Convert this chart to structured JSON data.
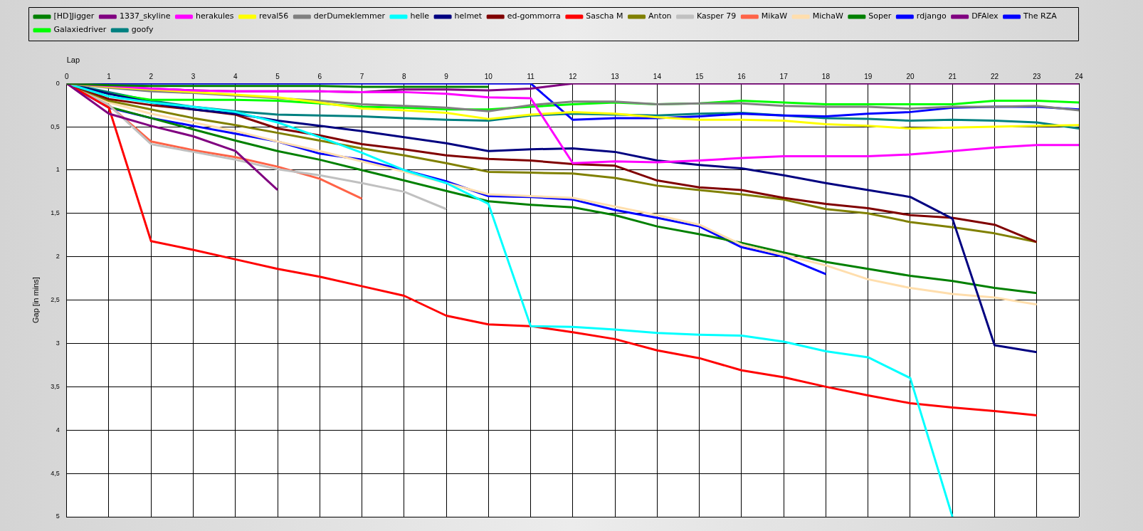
{
  "chart_data": {
    "type": "line",
    "xlabel": "Lap",
    "ylabel": "Gap [in mins]",
    "x": [
      0,
      1,
      2,
      3,
      4,
      5,
      6,
      7,
      8,
      9,
      10,
      11,
      12,
      13,
      14,
      15,
      16,
      17,
      18,
      19,
      20,
      21,
      22,
      23,
      24
    ],
    "xlim": [
      0,
      24
    ],
    "xticks": [
      0,
      1,
      2,
      3,
      4,
      5,
      6,
      7,
      8,
      9,
      10,
      11,
      12,
      13,
      14,
      15,
      16,
      17,
      18,
      19,
      20,
      21,
      22,
      23,
      24
    ],
    "ylim": [
      5,
      0
    ],
    "yticks": [
      0,
      {
        "value": 0.5,
        "label": "0,5"
      },
      1,
      {
        "value": 1.5,
        "label": "1,5"
      },
      2,
      {
        "value": 2.5,
        "label": "2,5"
      },
      3,
      {
        "value": 3.5,
        "label": "3,5"
      },
      4,
      {
        "value": 4.5,
        "label": "4,5"
      },
      5
    ],
    "grid": true,
    "legend": "top",
    "marker": "none",
    "line_style": "solid",
    "series": [
      {
        "name": "[HD]Jigger",
        "color": "#008000",
        "values": [
          0,
          0.02,
          0.03,
          0.03,
          0.03,
          0.03,
          0.03,
          0.04,
          0.04,
          0.04,
          0.04,
          null,
          null,
          null,
          null,
          null,
          null,
          null,
          null,
          null,
          null,
          null,
          null,
          null,
          null
        ]
      },
      {
        "name": "1337_skyline",
        "color": "#800080",
        "values": [
          0,
          0.35,
          0.49,
          0.61,
          0.78,
          1.23,
          null,
          null,
          null,
          null,
          null,
          null,
          null,
          null,
          null,
          null,
          null,
          null,
          null,
          null,
          null,
          null,
          null,
          null,
          null
        ]
      },
      {
        "name": "herakules",
        "color": "#ff00ff",
        "values": [
          0,
          0.03,
          0.06,
          0.08,
          0.09,
          0.09,
          0.09,
          0.1,
          0.1,
          0.12,
          0.16,
          0.17,
          0.92,
          0.9,
          0.91,
          0.89,
          0.86,
          0.84,
          0.84,
          0.84,
          0.82,
          0.78,
          0.74,
          0.71,
          0.71
        ]
      },
      {
        "name": "reval56",
        "color": "#ffff00",
        "values": [
          0,
          0.04,
          0.07,
          0.1,
          0.13,
          0.16,
          0.22,
          0.29,
          0.31,
          0.34,
          0.41,
          0.36,
          0.33,
          0.35,
          0.39,
          0.42,
          0.42,
          0.43,
          0.47,
          0.49,
          0.52,
          0.51,
          0.5,
          0.49,
          0.48
        ]
      },
      {
        "name": "derDumeklemmer",
        "color": "#808080",
        "values": [
          0,
          0.05,
          0.09,
          0.11,
          0.14,
          0.17,
          0.2,
          0.24,
          0.26,
          0.28,
          0.32,
          0.25,
          0.21,
          0.21,
          0.24,
          0.23,
          0.23,
          0.26,
          0.27,
          0.27,
          0.29,
          0.27,
          0.27,
          0.26,
          0.31
        ]
      },
      {
        "name": "helle",
        "color": "#00ffff",
        "values": [
          0,
          0.15,
          0.22,
          0.27,
          0.33,
          0.45,
          0.62,
          0.8,
          1.0,
          1.15,
          1.39,
          2.8,
          2.81,
          2.84,
          2.88,
          2.9,
          2.91,
          2.98,
          3.09,
          3.16,
          3.4,
          5,
          null,
          null,
          null
        ]
      },
      {
        "name": "helmet",
        "color": "#000080",
        "values": [
          0,
          0.12,
          0.22,
          0.3,
          0.35,
          0.43,
          0.49,
          0.55,
          0.62,
          0.69,
          0.78,
          0.76,
          0.75,
          0.79,
          0.89,
          0.94,
          0.98,
          1.06,
          1.15,
          1.23,
          1.31,
          1.56,
          3.02,
          3.1,
          null
        ]
      },
      {
        "name": "ed-gommorra",
        "color": "#800000",
        "values": [
          0,
          0.18,
          0.25,
          0.3,
          0.36,
          0.52,
          0.6,
          0.7,
          0.76,
          0.83,
          0.87,
          0.89,
          0.93,
          0.95,
          1.12,
          1.2,
          1.23,
          1.32,
          1.39,
          1.44,
          1.52,
          1.55,
          1.63,
          1.83,
          null
        ]
      },
      {
        "name": "Sascha M",
        "color": "#ff0000",
        "values": [
          0,
          0.28,
          1.82,
          1.92,
          2.03,
          2.14,
          2.23,
          2.34,
          2.45,
          2.68,
          2.78,
          2.8,
          2.87,
          2.95,
          3.08,
          3.17,
          3.31,
          3.39,
          3.5,
          3.6,
          3.69,
          3.74,
          3.78,
          3.83,
          null
        ]
      },
      {
        "name": "Anton",
        "color": "#808000",
        "values": [
          0,
          0.2,
          0.3,
          0.4,
          0.48,
          0.57,
          0.66,
          0.75,
          0.83,
          0.92,
          1.02,
          1.03,
          1.04,
          1.09,
          1.18,
          1.23,
          1.28,
          1.34,
          1.45,
          1.5,
          1.6,
          1.66,
          1.73,
          1.83,
          null
        ]
      },
      {
        "name": "Kasper 79",
        "color": "#c0c0c0",
        "values": [
          0,
          0.25,
          0.7,
          0.79,
          0.88,
          0.99,
          1.06,
          1.15,
          1.25,
          1.45,
          null,
          null,
          null,
          null,
          null,
          null,
          null,
          null,
          null,
          null,
          null,
          null,
          null,
          null,
          null
        ]
      },
      {
        "name": "MikaW",
        "color": "#ff6347",
        "values": [
          0,
          0.25,
          0.67,
          0.77,
          0.85,
          0.96,
          1.1,
          1.33,
          null,
          null,
          null,
          null,
          null,
          null,
          null,
          null,
          null,
          null,
          null,
          null,
          null,
          null,
          null,
          null,
          null
        ]
      },
      {
        "name": "MichaW",
        "color": "#ffdead",
        "values": [
          0,
          0.22,
          0.35,
          0.45,
          0.55,
          0.67,
          0.78,
          0.9,
          1.02,
          1.15,
          1.28,
          1.3,
          1.32,
          1.42,
          1.52,
          1.63,
          1.86,
          1.98,
          2.1,
          2.26,
          2.36,
          2.43,
          2.47,
          2.55,
          null
        ]
      },
      {
        "name": "Soper",
        "color": "#008000",
        "values": [
          0,
          0.27,
          0.4,
          0.53,
          0.66,
          0.78,
          0.88,
          1.0,
          1.12,
          1.24,
          1.36,
          1.4,
          1.43,
          1.52,
          1.65,
          1.74,
          1.84,
          1.95,
          2.06,
          2.14,
          2.22,
          2.28,
          2.36,
          2.42,
          null
        ]
      },
      {
        "name": "rdjango",
        "color": "#0000ff",
        "values": [
          0,
          0.28,
          0.4,
          0.49,
          0.58,
          0.67,
          0.81,
          0.88,
          1.0,
          1.13,
          1.3,
          1.31,
          1.34,
          1.46,
          1.55,
          1.65,
          1.89,
          2.0,
          2.2,
          null,
          null,
          null,
          null,
          null,
          null
        ]
      },
      {
        "name": "DFAlex",
        "color": "#800080",
        "values": [
          0,
          0.03,
          0.06,
          0.08,
          0.09,
          0.09,
          0.09,
          0.1,
          0.07,
          0.07,
          0.08,
          0.06,
          0,
          0,
          0,
          0,
          0,
          0,
          0,
          0,
          0,
          0,
          0,
          0,
          0
        ]
      },
      {
        "name": "The RZA",
        "color": "#0000ff",
        "values": [
          0,
          0,
          0,
          0,
          0,
          0,
          0,
          0,
          0,
          0,
          0,
          0,
          0.42,
          0.4,
          0.4,
          0.38,
          0.35,
          0.37,
          0.38,
          0.35,
          0.33,
          0.28,
          0.27,
          0.27,
          0.3
        ]
      },
      {
        "name": "Galaxiedriver",
        "color": "#00ff00",
        "values": [
          0,
          0.12,
          0.19,
          0.19,
          0.19,
          0.2,
          0.23,
          0.27,
          0.28,
          0.3,
          0.3,
          0.27,
          0.24,
          0.22,
          0.24,
          0.23,
          0.2,
          0.22,
          0.24,
          0.24,
          0.24,
          0.24,
          0.2,
          0.2,
          0.22
        ]
      },
      {
        "name": "goofy",
        "color": "#008080",
        "values": [
          0,
          0.1,
          0.2,
          0.27,
          0.32,
          0.36,
          0.37,
          0.38,
          0.4,
          0.42,
          0.43,
          0.37,
          0.35,
          0.36,
          0.37,
          0.35,
          0.34,
          0.37,
          0.4,
          0.41,
          0.43,
          0.42,
          0.43,
          0.45,
          0.52
        ]
      }
    ]
  }
}
